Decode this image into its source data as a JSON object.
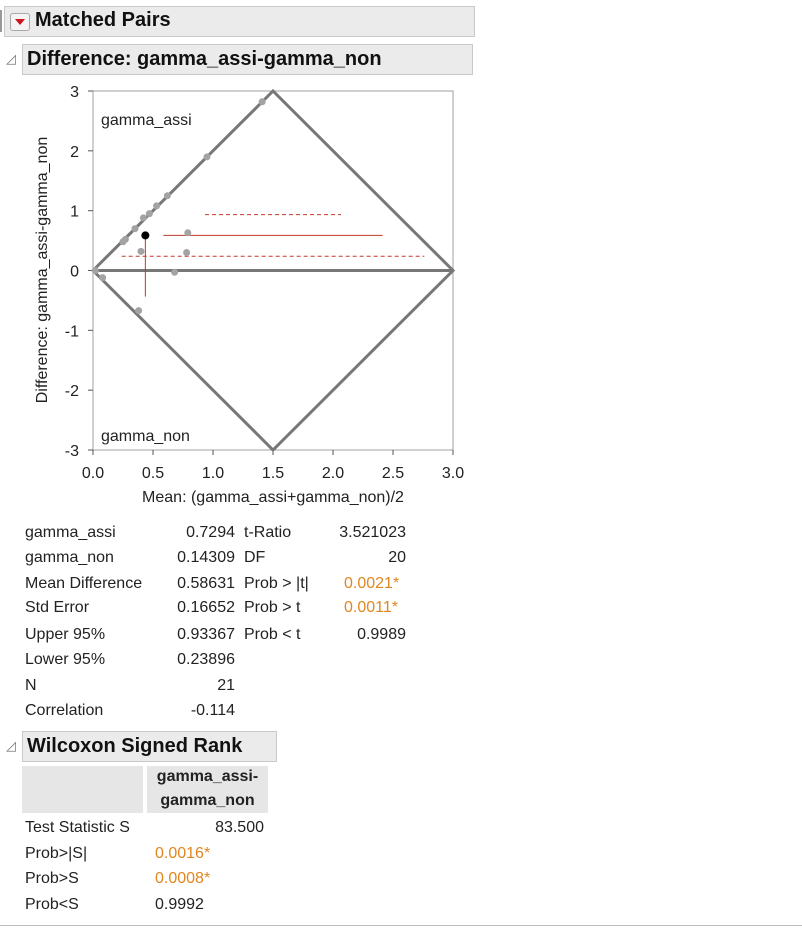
{
  "report": {
    "title": "Matched Pairs",
    "difference_title": "Difference: gamma_assi-gamma_non",
    "wilcoxon_title": "Wilcoxon Signed Rank"
  },
  "plot": {
    "ylabel": "Difference: gamma_assi-gamma_non",
    "xlabel": "Mean: (gamma_assi+gamma_non)/2",
    "upper_label": "gamma_assi",
    "lower_label": "gamma_non"
  },
  "chart_data": {
    "type": "scatter",
    "xlabel": "Mean: (gamma_assi+gamma_non)/2",
    "ylabel": "Difference: gamma_assi-gamma_non",
    "xlim": [
      0,
      3
    ],
    "ylim": [
      -3,
      3
    ],
    "x_ticks": [
      "0.0",
      "0.5",
      "1.0",
      "1.5",
      "2.0",
      "2.5",
      "3.0"
    ],
    "y_ticks": [
      "3",
      "2",
      "1",
      "0",
      "-1",
      "-2",
      "-3"
    ],
    "points": [
      {
        "x": 0.02,
        "y": 0.0
      },
      {
        "x": 0.08,
        "y": -0.12
      },
      {
        "x": 0.25,
        "y": 0.48
      },
      {
        "x": 0.27,
        "y": 0.52
      },
      {
        "x": 0.35,
        "y": 0.7
      },
      {
        "x": 0.38,
        "y": -0.67
      },
      {
        "x": 0.4,
        "y": 0.32
      },
      {
        "x": 0.42,
        "y": 0.88
      },
      {
        "x": 0.47,
        "y": 0.95
      },
      {
        "x": 0.53,
        "y": 1.08
      },
      {
        "x": 0.62,
        "y": 1.25
      },
      {
        "x": 0.68,
        "y": -0.03
      },
      {
        "x": 0.78,
        "y": 0.3
      },
      {
        "x": 0.79,
        "y": 0.63
      },
      {
        "x": 0.95,
        "y": 1.9
      },
      {
        "x": 1.41,
        "y": 2.82
      }
    ],
    "mean_point": {
      "x": 0.43631,
      "y": 0.58631
    },
    "mean_difference": 0.58631,
    "upper_95": 0.93367,
    "lower_95": 0.23896,
    "colors": {
      "points": "#a3a3a3",
      "mean_point": "#000000",
      "diamond": "#777777",
      "reference": "#c0392b"
    }
  },
  "stats_left": [
    {
      "label": "gamma_assi",
      "value": "0.7294"
    },
    {
      "label": "gamma_non",
      "value": "0.14309"
    },
    {
      "label": "Mean Difference",
      "value": "0.58631"
    },
    {
      "label": "Std Error",
      "value": "0.16652"
    },
    {
      "label": "Upper 95%",
      "value": "0.93367"
    },
    {
      "label": "Lower 95%",
      "value": "0.23896"
    },
    {
      "label": "N",
      "value": "21"
    },
    {
      "label": "Correlation",
      "value": "-0.114"
    }
  ],
  "stats_right": [
    {
      "label": "t-Ratio",
      "value": "3.521023",
      "highlight": false
    },
    {
      "label": "DF",
      "value": "20",
      "highlight": false
    },
    {
      "label": "Prob > |t|",
      "value": "0.0021*",
      "highlight": true
    },
    {
      "label": "Prob > t",
      "value": "0.0011*",
      "highlight": true
    },
    {
      "label": "Prob < t",
      "value": "0.9989",
      "highlight": false
    }
  ],
  "wilcoxon": {
    "column_header_line1": "gamma_assi-",
    "column_header_line2": "gamma_non",
    "rows": [
      {
        "label": "Test Statistic S",
        "value": "83.500"
      },
      {
        "label": "Prob>|S|",
        "value": "0.0016*"
      },
      {
        "label": "Prob>S",
        "value": "0.0008*"
      },
      {
        "label": "Prob<S",
        "value": "0.9992"
      }
    ]
  },
  "accent_color": "#e0861e"
}
